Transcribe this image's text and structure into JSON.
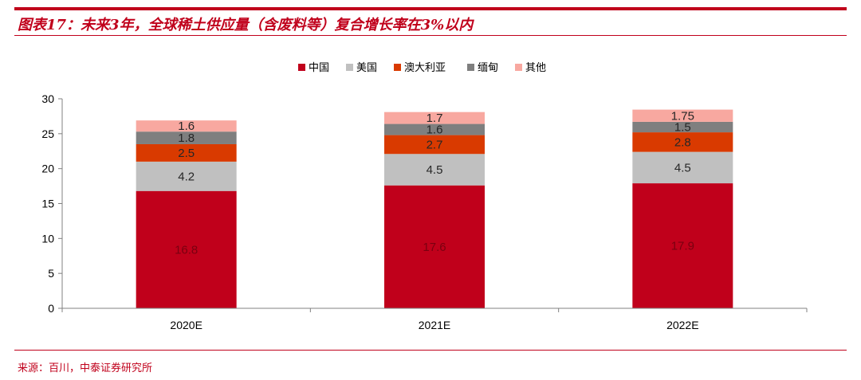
{
  "header": {
    "title": "图表17：未来3年，全球稀土供应量（含废料等）复合增长率在3%以内"
  },
  "footer": {
    "source": "来源：百川，中泰证券研究所"
  },
  "colors": {
    "accent": "#c0001b",
    "series": [
      "#c0001b",
      "#c0c0c0",
      "#d93a00",
      "#7f7f7f",
      "#f8a8a0"
    ]
  },
  "chart_data": {
    "type": "bar",
    "stacked": true,
    "categories": [
      "2020E",
      "2021E",
      "2022E"
    ],
    "series": [
      {
        "name": "中国",
        "values": [
          16.8,
          17.6,
          17.9
        ],
        "labels": [
          "16.8",
          "17.6",
          "17.9"
        ]
      },
      {
        "name": "美国",
        "values": [
          4.2,
          4.5,
          4.5
        ],
        "labels": [
          "4.2",
          "4.5",
          "4.5"
        ]
      },
      {
        "name": "澳大利亚",
        "values": [
          2.5,
          2.7,
          2.8
        ],
        "labels": [
          "2.5",
          "2.7",
          "2.8"
        ]
      },
      {
        "name": "缅甸",
        "values": [
          1.8,
          1.6,
          1.5
        ],
        "labels": [
          "1.8",
          "1.6",
          "1.5"
        ]
      },
      {
        "name": "其他",
        "values": [
          1.6,
          1.7,
          1.75
        ],
        "labels": [
          "1.6",
          "1.7",
          "1.75"
        ]
      }
    ],
    "yticks": [
      "0",
      "5",
      "10",
      "15",
      "20",
      "25",
      "30"
    ],
    "ylim": [
      0,
      30
    ],
    "xlabel": "",
    "ylabel": "",
    "grid": false,
    "legend": "top-center"
  }
}
